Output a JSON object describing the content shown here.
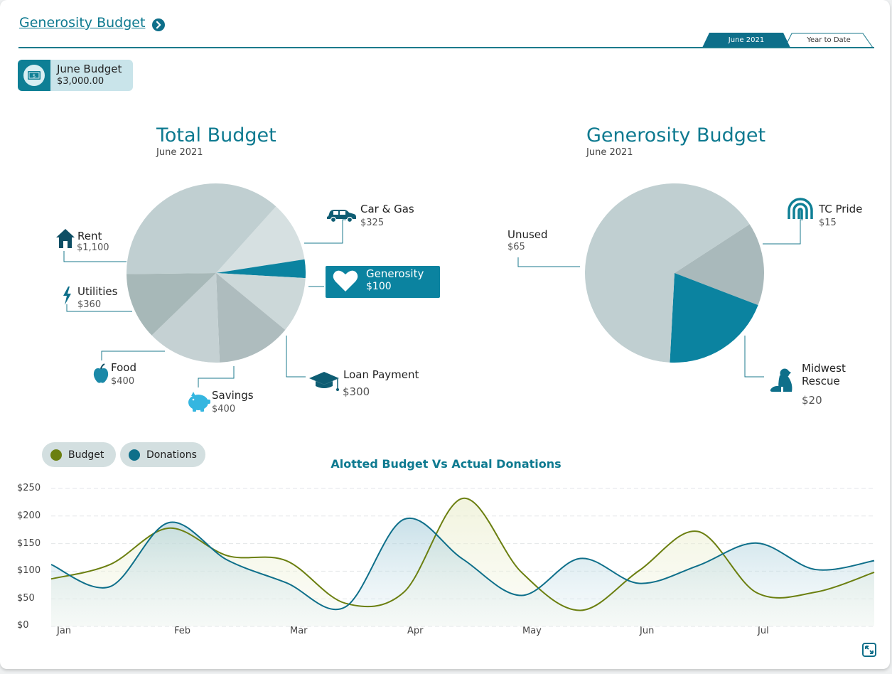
{
  "header": {
    "title": "Generosity Budget",
    "tabs": [
      {
        "label": "June 2021",
        "active": true
      },
      {
        "label": "Year to Date",
        "active": false
      }
    ]
  },
  "budget_chip": {
    "label": "June Budget",
    "value": "$3,000.00",
    "icon": "money-icon"
  },
  "total_budget": {
    "title": "Total Budget",
    "subtitle": "June 2021",
    "slices": [
      {
        "name": "Car & Gas",
        "value": "$325",
        "icon": "car-icon"
      },
      {
        "name": "Generosity",
        "value": "$100",
        "icon": "heart-icon"
      },
      {
        "name": "Loan Payment",
        "value": "$300",
        "icon": "graduation-cap-icon"
      },
      {
        "name": "Savings",
        "value": "$400",
        "icon": "piggy-bank-icon"
      },
      {
        "name": "Food",
        "value": "$400",
        "icon": "apple-icon"
      },
      {
        "name": "Utilities",
        "value": "$360",
        "icon": "lightning-icon"
      },
      {
        "name": "Rent",
        "value": "$1,100",
        "icon": "house-icon"
      }
    ]
  },
  "generosity_budget": {
    "title": "Generosity Budget",
    "subtitle": "June 2021",
    "slices": [
      {
        "name": "TC Pride",
        "value": "$15",
        "icon": "rainbow-icon"
      },
      {
        "name": "Midwest Rescue",
        "value": "$20",
        "icon": "dog-icon"
      },
      {
        "name": "Unused",
        "value": "$65",
        "icon": ""
      }
    ]
  },
  "legend": [
    {
      "label": "Budget",
      "color": "#6b7f10"
    },
    {
      "label": "Donations",
      "color": "#0e6f8a"
    }
  ],
  "chart_data": [
    {
      "type": "pie",
      "title": "Total Budget",
      "subtitle": "June 2021",
      "labels": [
        "Car & Gas",
        "Generosity",
        "Loan Payment",
        "Savings",
        "Food",
        "Utilities",
        "Rent"
      ],
      "values": [
        325,
        100,
        300,
        400,
        400,
        360,
        1100
      ],
      "colors": [
        "#d6e0e1",
        "#0b83a0",
        "#ccd8d9",
        "#aebcbe",
        "#c5d1d3",
        "#a7b8b8",
        "#c0cfd1"
      ]
    },
    {
      "type": "pie",
      "title": "Generosity Budget",
      "subtitle": "June 2021",
      "labels": [
        "TC Pride",
        "Midwest Rescue",
        "Unused"
      ],
      "values": [
        15,
        20,
        65
      ],
      "colors": [
        "#a9b9bb",
        "#0b83a0",
        "#c0cfd1"
      ]
    },
    {
      "type": "line",
      "title": "Alotted Budget Vs Actual Donations",
      "x_labels": [
        "Jan",
        "Feb",
        "Mar",
        "Apr",
        "May",
        "Jun",
        "Jul"
      ],
      "y_ticks": [
        "$250",
        "$200",
        "$150",
        "$100",
        "$50",
        "$0"
      ],
      "ylim": [
        0,
        250
      ],
      "x": [
        0,
        0.5,
        1,
        1.5,
        2,
        2.5,
        3,
        3.5,
        4,
        4.5,
        5,
        5.5,
        6,
        6.5,
        7
      ],
      "series": [
        {
          "name": "Budget",
          "color": "#6b7f10",
          "values": [
            86,
            112,
            178,
            128,
            119,
            42,
            62,
            232,
            98,
            29,
            101,
            172,
            61,
            62,
            98
          ]
        },
        {
          "name": "Donations",
          "color": "#0e6f8a",
          "values": [
            112,
            72,
            188,
            120,
            79,
            35,
            194,
            122,
            56,
            123,
            78,
            110,
            151,
            103,
            119
          ]
        }
      ]
    }
  ]
}
